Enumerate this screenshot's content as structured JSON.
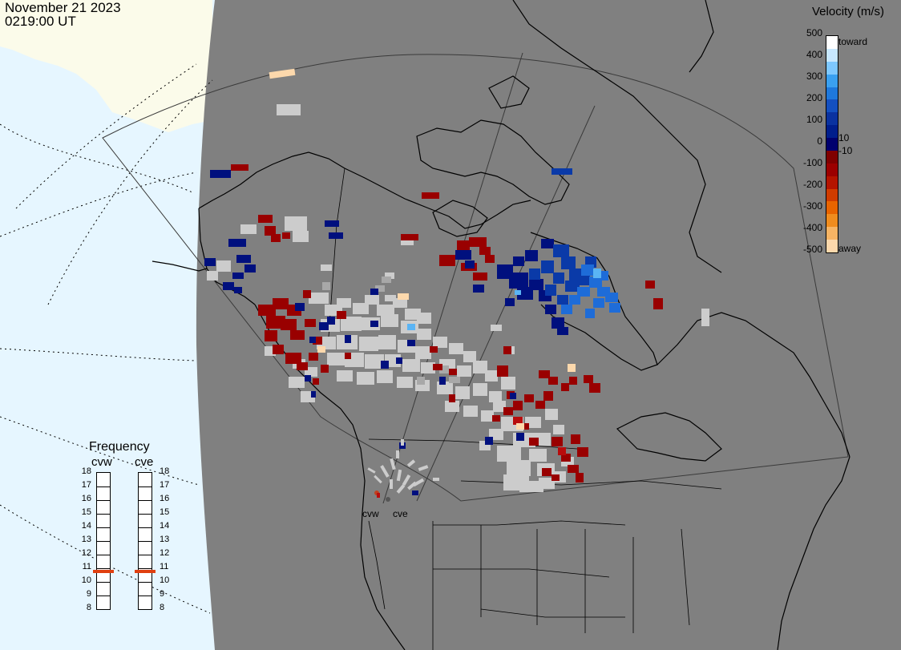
{
  "header": {
    "date": "November 21 2023",
    "time": "0219:00 UT"
  },
  "velocity_scale": {
    "title": "Velocity (m/s)",
    "toward_label": "toward",
    "away_label": "away",
    "tick_labels": [
      "500",
      "400",
      "300",
      "200",
      "100",
      "0",
      "-100",
      "-200",
      "-300",
      "-400",
      "-500"
    ],
    "inner_positive_label": "10",
    "inner_negative_label": "-10",
    "colors_top_to_bottom": [
      "#ffffff",
      "#c8e8ff",
      "#7ec8ff",
      "#3aa0f0",
      "#1e78dc",
      "#1450c0",
      "#0a32a0",
      "#001e8c",
      "#00006e",
      "#800000",
      "#9c0000",
      "#b41400",
      "#d03c00",
      "#e86400",
      "#f08c1e",
      "#f7b464",
      "#fcd8ac"
    ]
  },
  "frequency_panel": {
    "title": "Frequency",
    "radars": [
      {
        "name": "cvw",
        "frequency_mhz": 11
      },
      {
        "name": "cve",
        "frequency_mhz": 11
      }
    ],
    "scale_labels": [
      "18",
      "17",
      "16",
      "15",
      "14",
      "13",
      "12",
      "11",
      "10",
      "9",
      "8"
    ],
    "marker_color": "#e04010"
  },
  "map": {
    "ocean_color": "#e6f6ff",
    "land_color": "#fbfbea",
    "night_color": "#808080",
    "ground_scatter_color": "#cccccc",
    "radar_site_labels": [
      "cvw",
      "cve"
    ]
  }
}
